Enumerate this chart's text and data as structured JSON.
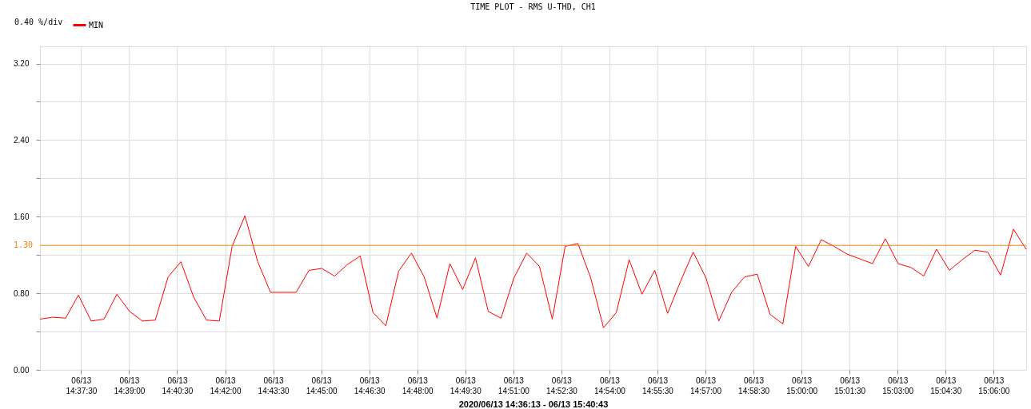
{
  "chart_data": {
    "type": "line",
    "title": "TIME PLOT - RMS  U-THD, CH1",
    "xlabel": "2020/06/13 14:36:13 - 06/13 15:40:43",
    "annotations": [
      "0.40 %/div"
    ],
    "x": [
      "2020-06-13T14:36:13",
      "2020-06-13T14:36:37",
      "2020-06-13T14:37:01",
      "2020-06-13T14:37:25",
      "2020-06-13T14:37:49",
      "2020-06-13T14:38:13",
      "2020-06-13T14:38:37",
      "2020-06-13T14:39:01",
      "2020-06-13T14:39:25",
      "2020-06-13T14:39:49",
      "2020-06-13T14:40:13",
      "2020-06-13T14:40:37",
      "2020-06-13T14:41:01",
      "2020-06-13T14:41:25",
      "2020-06-13T14:41:49",
      "2020-06-13T14:42:13",
      "2020-06-13T14:42:37",
      "2020-06-13T14:43:01",
      "2020-06-13T14:43:25",
      "2020-06-13T14:43:49",
      "2020-06-13T14:44:13",
      "2020-06-13T14:44:37",
      "2020-06-13T14:45:01",
      "2020-06-13T14:45:25",
      "2020-06-13T14:45:49",
      "2020-06-13T14:46:13",
      "2020-06-13T14:46:37",
      "2020-06-13T14:47:01",
      "2020-06-13T14:47:25",
      "2020-06-13T14:47:49",
      "2020-06-13T14:48:13",
      "2020-06-13T14:48:37",
      "2020-06-13T14:49:01",
      "2020-06-13T14:49:25",
      "2020-06-13T14:49:49",
      "2020-06-13T14:50:13",
      "2020-06-13T14:50:37",
      "2020-06-13T14:51:01",
      "2020-06-13T14:51:25",
      "2020-06-13T14:51:49",
      "2020-06-13T14:52:13",
      "2020-06-13T14:52:37",
      "2020-06-13T14:53:01",
      "2020-06-13T14:53:25",
      "2020-06-13T14:53:49",
      "2020-06-13T14:54:13",
      "2020-06-13T14:54:37",
      "2020-06-13T14:55:01",
      "2020-06-13T14:55:25",
      "2020-06-13T14:55:49",
      "2020-06-13T14:56:13",
      "2020-06-13T14:56:37",
      "2020-06-13T14:57:01",
      "2020-06-13T14:57:25",
      "2020-06-13T14:57:49",
      "2020-06-13T14:58:13",
      "2020-06-13T14:58:37",
      "2020-06-13T14:59:01",
      "2020-06-13T14:59:25",
      "2020-06-13T14:59:49",
      "2020-06-13T15:00:13",
      "2020-06-13T15:00:37",
      "2020-06-13T15:01:01",
      "2020-06-13T15:01:25",
      "2020-06-13T15:01:49",
      "2020-06-13T15:02:13",
      "2020-06-13T15:02:37",
      "2020-06-13T15:03:01",
      "2020-06-13T15:03:25",
      "2020-06-13T15:03:49",
      "2020-06-13T15:04:13",
      "2020-06-13T15:04:37",
      "2020-06-13T15:05:01",
      "2020-06-13T15:05:25",
      "2020-06-13T15:05:49",
      "2020-06-13T15:06:13",
      "2020-06-13T15:06:37",
      "2020-06-13T15:07:01"
    ],
    "series": [
      {
        "name": "MIN",
        "color": "#ff0000",
        "values": [
          0.53,
          0.55,
          0.54,
          0.78,
          0.51,
          0.53,
          0.79,
          0.61,
          0.51,
          0.52,
          0.97,
          1.13,
          0.76,
          0.52,
          0.51,
          1.29,
          1.61,
          1.13,
          0.81,
          0.81,
          0.81,
          1.04,
          1.06,
          0.98,
          1.1,
          1.19,
          0.6,
          0.46,
          1.03,
          1.22,
          0.97,
          0.54,
          1.11,
          0.84,
          1.17,
          0.61,
          0.54,
          0.96,
          1.22,
          1.08,
          0.53,
          1.29,
          1.32,
          0.96,
          0.44,
          0.6,
          1.15,
          0.79,
          1.04,
          0.59,
          0.92,
          1.23,
          0.96,
          0.51,
          0.81,
          0.97,
          1.0,
          0.58,
          0.48,
          1.29,
          1.08,
          1.36,
          1.29,
          1.21,
          1.16,
          1.11,
          1.37,
          1.11,
          1.07,
          0.98,
          1.26,
          1.04,
          1.15,
          1.25,
          1.23,
          0.99,
          1.47,
          1.26
        ]
      }
    ],
    "xlim": [
      "2020-06-13T14:36:13",
      "2020-06-13T15:07:01"
    ],
    "ylim": [
      0,
      3.38
    ],
    "xticks": [
      {
        "value": "2020-06-13T14:37:30",
        "label": "06/13 14:37:30"
      },
      {
        "value": "2020-06-13T14:39:00",
        "label": "06/13 14:39:00"
      },
      {
        "value": "2020-06-13T14:40:30",
        "label": "06/13 14:40:30"
      },
      {
        "value": "2020-06-13T14:42:00",
        "label": "06/13 14:42:00"
      },
      {
        "value": "2020-06-13T14:43:30",
        "label": "06/13 14:43:30"
      },
      {
        "value": "2020-06-13T14:45:00",
        "label": "06/13 14:45:00"
      },
      {
        "value": "2020-06-13T14:46:30",
        "label": "06/13 14:46:30"
      },
      {
        "value": "2020-06-13T14:48:00",
        "label": "06/13 14:48:00"
      },
      {
        "value": "2020-06-13T14:49:30",
        "label": "06/13 14:49:30"
      },
      {
        "value": "2020-06-13T14:51:00",
        "label": "06/13 14:51:00"
      },
      {
        "value": "2020-06-13T14:52:30",
        "label": "06/13 14:52:30"
      },
      {
        "value": "2020-06-13T14:54:00",
        "label": "06/13 14:54:00"
      },
      {
        "value": "2020-06-13T14:55:30",
        "label": "06/13 14:55:30"
      },
      {
        "value": "2020-06-13T14:57:00",
        "label": "06/13 14:57:00"
      },
      {
        "value": "2020-06-13T14:58:30",
        "label": "06/13 14:58:30"
      },
      {
        "value": "2020-06-13T15:00:00",
        "label": "06/13 15:00:00"
      },
      {
        "value": "2020-06-13T15:01:30",
        "label": "06/13 15:01:30"
      },
      {
        "value": "2020-06-13T15:03:00",
        "label": "06/13 15:03:00"
      },
      {
        "value": "2020-06-13T15:04:30",
        "label": "06/13 15:04:30"
      },
      {
        "value": "2020-06-13T15:06:00",
        "label": "06/13 15:06:00"
      }
    ],
    "yticks": [
      {
        "value": 0,
        "label": "0.00"
      },
      {
        "value": 0.4,
        "label": null
      },
      {
        "value": 0.8,
        "label": "0.80"
      },
      {
        "value": 1.2,
        "label": null
      },
      {
        "value": 1.6,
        "label": "1.60"
      },
      {
        "value": 2.0,
        "label": null
      },
      {
        "value": 2.4,
        "label": "2.40"
      },
      {
        "value": 2.8,
        "label": null
      },
      {
        "value": 3.2,
        "label": "3.20"
      }
    ],
    "ref_lines": [
      {
        "axis": "y",
        "value": 1.3,
        "label": "1.30",
        "color": "#f08010"
      }
    ],
    "grid": true,
    "legend": "top left",
    "line_style": "solid"
  }
}
